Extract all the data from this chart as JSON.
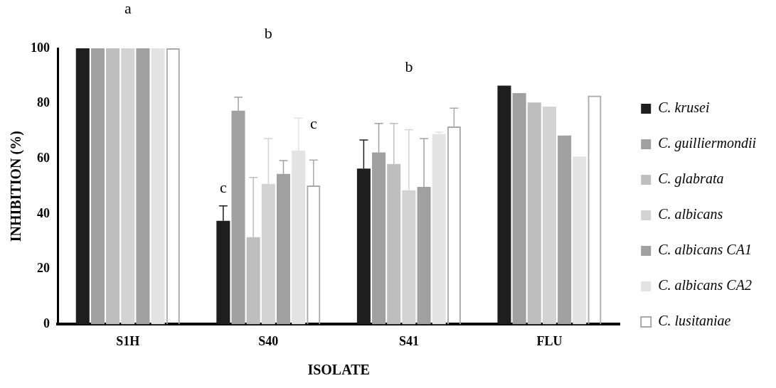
{
  "chart_data": {
    "type": "bar",
    "xlabel": "ISOLATE",
    "ylabel": "INHIBITION (%)",
    "categories": [
      "S1H",
      "S40",
      "S41",
      "FLU"
    ],
    "ylim": [
      0,
      100
    ],
    "yticks": [
      0,
      20,
      40,
      60,
      80,
      100
    ],
    "grid": false,
    "legend": "right",
    "series": [
      {
        "name": "C. krusei",
        "color": "#1e1e1e",
        "values": [
          100,
          37.5,
          56.4,
          86.5
        ],
        "errors": [
          null,
          [
            37.5,
            42.9
          ],
          [
            56.4,
            66.8
          ],
          null
        ]
      },
      {
        "name": "C. guilliermondii",
        "color": "#a0a0a0",
        "values": [
          100,
          77.4,
          62.3,
          83.8
        ],
        "errors": [
          null,
          [
            77.4,
            82.3
          ],
          [
            62.3,
            72.8
          ],
          null
        ]
      },
      {
        "name": "C. glabrata",
        "color": "#bebebe",
        "values": [
          100,
          31.6,
          58.1,
          80.4
        ],
        "errors": [
          null,
          [
            31.6,
            53.2
          ],
          [
            58.1,
            72.8
          ],
          null
        ]
      },
      {
        "name": "C. albicans",
        "color": "#d3d3d3",
        "values": [
          100,
          50.9,
          48.6,
          78.9
        ],
        "errors": [
          null,
          [
            50.9,
            67.3
          ],
          [
            48.6,
            70.5
          ],
          null
        ]
      },
      {
        "name": "C. albicans CA1",
        "color": "#a0a0a0",
        "values": [
          100,
          54.5,
          49.8,
          68.4
        ],
        "errors": [
          null,
          [
            54.5,
            59.3
          ],
          [
            49.8,
            67.3
          ],
          null
        ]
      },
      {
        "name": "C. albicans CA2",
        "color": "#e3e3e3",
        "values": [
          100,
          63,
          69,
          60.8
        ],
        "errors": [
          null,
          [
            63,
            74.7
          ],
          [
            69,
            69.6
          ],
          null
        ]
      },
      {
        "name": "C. lusitaniae",
        "color": "#a8a8a8",
        "values": [
          100,
          50.3,
          71.7,
          82.9
        ],
        "errors": [
          null,
          [
            50.3,
            59.5
          ],
          [
            71.7,
            78.3
          ],
          null
        ]
      }
    ],
    "annotations": [
      "a",
      "b",
      "b",
      "c",
      "c"
    ]
  }
}
